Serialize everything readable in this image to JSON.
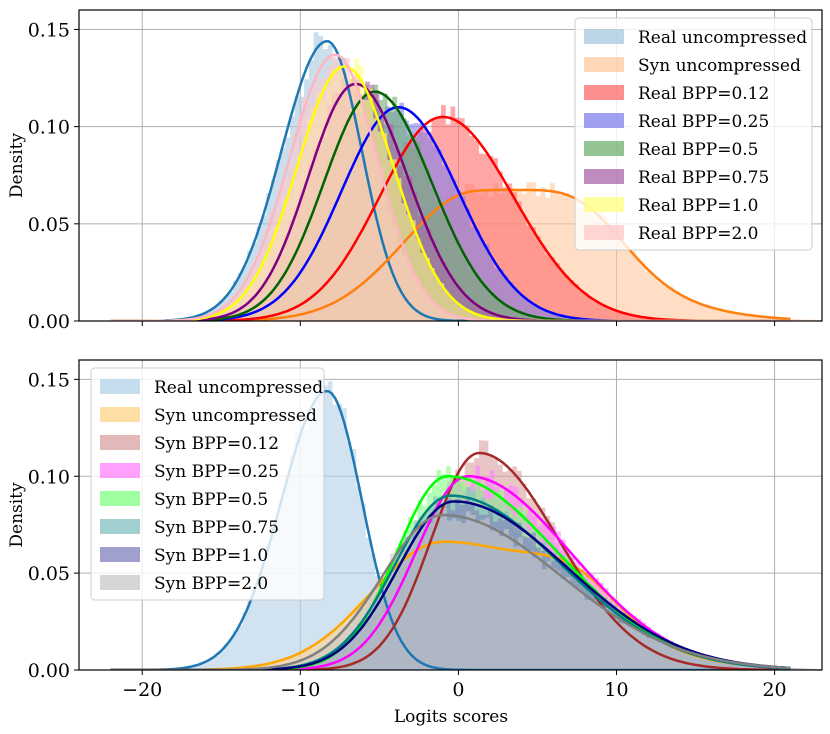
{
  "chart_data": [
    {
      "type": "histogram-kde",
      "panel": "top",
      "xlabel": "",
      "ylabel": "Density",
      "xlim": [
        -24,
        23
      ],
      "ylim": [
        0,
        0.16
      ],
      "xticks": [
        -20,
        -10,
        0,
        10,
        20
      ],
      "yticks": [
        0.0,
        0.05,
        0.1,
        0.15
      ],
      "ytick_labels": [
        "0.00",
        "0.05",
        "0.10",
        "0.15"
      ],
      "grid": true,
      "legend_position": "top-right",
      "series": [
        {
          "name": "Real uncompressed",
          "fill": "#a6c8e0",
          "line": "#1f77b4",
          "mu": -8.3,
          "sl": 2.9,
          "sr": 2.2,
          "peak": 0.144
        },
        {
          "name": "Syn uncompressed",
          "fill": "#ffc89e",
          "line": "#ff7f0e",
          "mu": 1.0,
          "sl": 4.5,
          "sr": 7.0,
          "peak": 0.066,
          "bump": {
            "mu": 8.0,
            "s": 2.8,
            "h": 0.02
          }
        },
        {
          "name": "Real BPP=0.12",
          "fill": "#ff6a6a",
          "line": "#ff0000",
          "mu": -1.0,
          "sl": 4.0,
          "sr": 4.5,
          "peak": 0.105
        },
        {
          "name": "Real BPP=0.25",
          "fill": "#8080ee",
          "line": "#0000ff",
          "mu": -3.8,
          "sl": 3.6,
          "sr": 3.8,
          "peak": 0.11
        },
        {
          "name": "Real BPP=0.5",
          "fill": "#6fae6f",
          "line": "#006400",
          "mu": -5.3,
          "sl": 3.2,
          "sr": 3.6,
          "peak": 0.118
        },
        {
          "name": "Real BPP=0.75",
          "fill": "#a866a8",
          "line": "#800080",
          "mu": -6.5,
          "sl": 3.0,
          "sr": 3.3,
          "peak": 0.122
        },
        {
          "name": "Real BPP=1.0",
          "fill": "#ffff80",
          "line": "#ffff00",
          "mu": -7.2,
          "sl": 3.0,
          "sr": 3.1,
          "peak": 0.131
        },
        {
          "name": "Real BPP=2.0",
          "fill": "#ffc8c8",
          "line": "#ffb6c1",
          "mu": -7.8,
          "sl": 2.9,
          "sr": 2.7,
          "peak": 0.137
        }
      ]
    },
    {
      "type": "histogram-kde",
      "panel": "bottom",
      "xlabel": "Logits scores",
      "ylabel": "Density",
      "xlim": [
        -24,
        23
      ],
      "ylim": [
        0,
        0.16
      ],
      "xticks": [
        -20,
        -10,
        0,
        10,
        20
      ],
      "xtick_labels": [
        "−20",
        "−10",
        "0",
        "10",
        "20"
      ],
      "yticks": [
        0.0,
        0.05,
        0.1,
        0.15
      ],
      "ytick_labels": [
        "0.00",
        "0.05",
        "0.10",
        "0.15"
      ],
      "grid": true,
      "legend_position": "top-left",
      "series": [
        {
          "name": "Real uncompressed",
          "fill": "#b3d1e8",
          "line": "#1f77b4",
          "mu": -8.3,
          "sl": 2.9,
          "sr": 2.2,
          "peak": 0.144
        },
        {
          "name": "Syn uncompressed",
          "fill": "#ffd28a",
          "line": "#ffa500",
          "mu": -1.0,
          "sl": 4.5,
          "sr": 7.5,
          "peak": 0.066,
          "bump": {
            "mu": 7.5,
            "s": 2.8,
            "h": 0.018
          }
        },
        {
          "name": "Syn BPP=0.12",
          "fill": "#d9a0a0",
          "line": "#a52a2a",
          "mu": 1.3,
          "sl": 3.0,
          "sr": 5.0,
          "peak": 0.112
        },
        {
          "name": "Syn BPP=0.25",
          "fill": "#ff80ff",
          "line": "#ff00ff",
          "mu": 0.6,
          "sl": 3.3,
          "sr": 6.5,
          "peak": 0.1
        },
        {
          "name": "Syn BPP=0.5",
          "fill": "#80ff80",
          "line": "#00ff00",
          "mu": -0.7,
          "sl": 3.2,
          "sr": 7.0,
          "peak": 0.1
        },
        {
          "name": "Syn BPP=0.75",
          "fill": "#80c0c0",
          "line": "#008080",
          "mu": -0.5,
          "sl": 3.5,
          "sr": 7.0,
          "peak": 0.09
        },
        {
          "name": "Syn BPP=1.0",
          "fill": "#8080c0",
          "line": "#000080",
          "mu": -0.3,
          "sl": 3.5,
          "sr": 7.2,
          "peak": 0.087
        },
        {
          "name": "Syn BPP=2.0",
          "fill": "#c8c8c8",
          "line": "#808080",
          "mu": -1.0,
          "sl": 3.8,
          "sr": 7.5,
          "peak": 0.08
        }
      ]
    }
  ]
}
